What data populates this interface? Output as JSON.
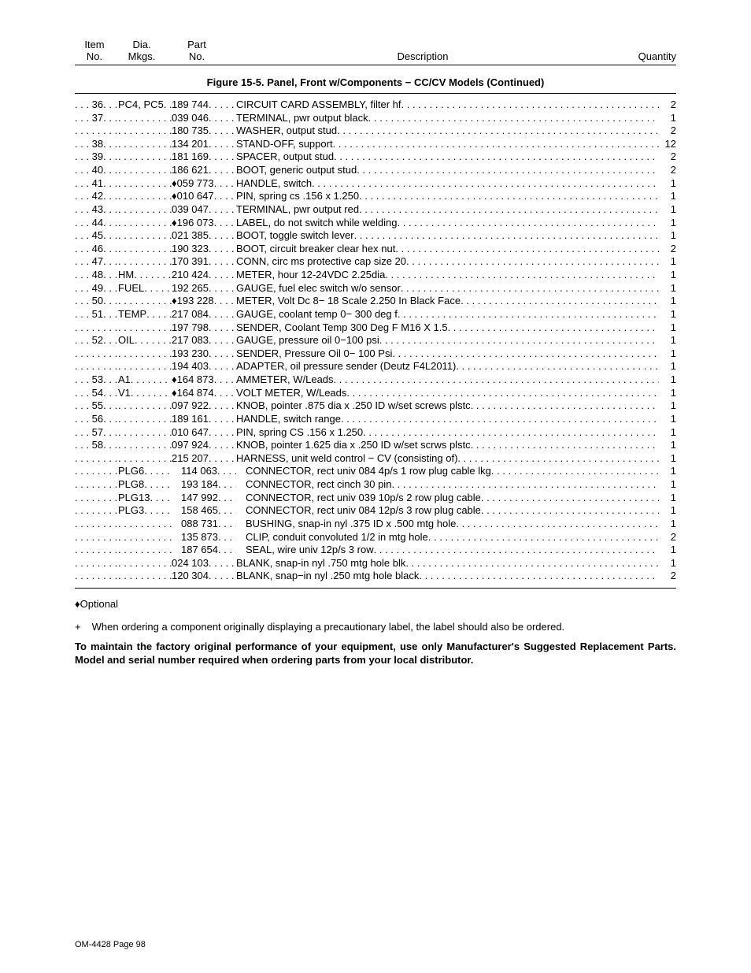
{
  "headers": {
    "item": [
      "Item",
      "No."
    ],
    "dia": [
      "Dia.",
      "Mkgs."
    ],
    "part": [
      "Part",
      "No."
    ],
    "desc": "Description",
    "qty": "Quantity"
  },
  "figure_title": "Figure 15-5. Panel, Front w/Components − CC/CV Models (Continued)",
  "rows": [
    {
      "item": "36",
      "dia": "PC4, PC5",
      "part": "189 744",
      "desc": "CIRCUIT CARD ASSEMBLY, filter hf",
      "qty": "2"
    },
    {
      "item": "37",
      "dia": "",
      "part": "039 046",
      "desc": "TERMINAL, pwr output black",
      "qty": "1"
    },
    {
      "item": "",
      "dia": "",
      "part": "180 735",
      "desc": "WASHER, output stud",
      "qty": "2"
    },
    {
      "item": "38",
      "dia": "",
      "part": "134 201",
      "desc": "STAND-OFF, support",
      "qty": "12"
    },
    {
      "item": "39",
      "dia": "",
      "part": "181 169",
      "desc": "SPACER, output stud",
      "qty": "2"
    },
    {
      "item": "40",
      "dia": "",
      "part": "186 621",
      "desc": "BOOT, generic output stud",
      "qty": "2"
    },
    {
      "item": "41",
      "dia": "",
      "part": "♦059 773",
      "desc": "HANDLE, switch",
      "qty": "1"
    },
    {
      "item": "42",
      "dia": "",
      "part": "♦010 647",
      "desc": "PIN, spring cs .156 x 1.250",
      "qty": "1"
    },
    {
      "item": "43",
      "dia": "",
      "part": "039 047",
      "desc": "TERMINAL, pwr output red",
      "qty": "1"
    },
    {
      "item": "44",
      "dia": "",
      "part": "♦196 073",
      "desc": "LABEL, do not switch while welding",
      "qty": "1"
    },
    {
      "item": "45",
      "dia": "",
      "part": "021 385",
      "desc": "BOOT, toggle switch lever",
      "qty": "1"
    },
    {
      "item": "46",
      "dia": "",
      "part": "190 323",
      "desc": "BOOT, circuit breaker clear hex nut",
      "qty": "2"
    },
    {
      "item": "47",
      "dia": "",
      "part": "170 391",
      "desc": "CONN, circ ms protective cap size 20",
      "qty": "1"
    },
    {
      "item": "48",
      "dia": "HM",
      "part": "210 424",
      "desc": "METER, hour 12-24VDC 2.25dia",
      "qty": "1"
    },
    {
      "item": "49",
      "dia": "FUEL",
      "part": "192 265",
      "desc": "GAUGE, fuel elec switch w/o sensor",
      "qty": "1"
    },
    {
      "item": "50",
      "dia": "",
      "part": "♦193 228",
      "desc": "METER, Volt Dc 8− 18 Scale 2.250 In Black Face",
      "qty": "1"
    },
    {
      "item": "51",
      "dia": "TEMP",
      "part": "217 084",
      "desc": "GAUGE, coolant temp 0− 300 deg f",
      "qty": "1"
    },
    {
      "item": "",
      "dia": "",
      "part": "197 798",
      "desc": "SENDER, Coolant Temp 300 Deg F M16 X 1.5",
      "qty": "1"
    },
    {
      "item": "52",
      "dia": "OIL",
      "part": "217 083",
      "desc": "GAUGE, pressure oil 0−100 psi",
      "qty": "1"
    },
    {
      "item": "",
      "dia": "",
      "part": "193 230",
      "desc": "SENDER, Pressure Oil 0− 100 Psi",
      "qty": "1"
    },
    {
      "item": "",
      "dia": "",
      "part": "194 403",
      "desc": "ADAPTER, oil pressure sender (Deutz F4L2011)",
      "qty": "1"
    },
    {
      "item": "53",
      "dia": "A1",
      "part": "♦164 873",
      "desc": "AMMETER, W/Leads",
      "qty": "1"
    },
    {
      "item": "54",
      "dia": "V1",
      "part": "♦164 874",
      "desc": "VOLT METER, W/Leads",
      "qty": "1"
    },
    {
      "item": "55",
      "dia": "",
      "part": "097 922",
      "desc": "KNOB, pointer .875 dia x .250 ID w/set screws plstc",
      "qty": "1"
    },
    {
      "item": "56",
      "dia": "",
      "part": "189 161",
      "desc": "HANDLE, switch range",
      "qty": "1"
    },
    {
      "item": "57",
      "dia": "",
      "part": "010 647",
      "desc": "PIN, spring CS .156 x 1.250",
      "qty": "1"
    },
    {
      "item": "58",
      "dia": "",
      "part": "097 924",
      "desc": "KNOB, pointer 1.625 dia x .250 ID w/set scrws plstc",
      "qty": "1"
    },
    {
      "item": "",
      "dia": "",
      "part": "215 207",
      "desc": "HARNESS, unit weld control − CV (consisting of)",
      "qty": "1"
    },
    {
      "item": "",
      "dia": "PLG6",
      "part": "114 063",
      "desc": "CONNECTOR, rect univ 084 4p/s 1 row plug cable lkg",
      "qty": "1",
      "indent": true
    },
    {
      "item": "",
      "dia": "PLG8",
      "part": "193 184",
      "desc": "CONNECTOR, rect cinch 30 pin",
      "qty": "1",
      "indent": true
    },
    {
      "item": "",
      "dia": "PLG13",
      "part": "147 992",
      "desc": "CONNECTOR, rect univ 039 10p/s 2 row plug cable",
      "qty": "1",
      "indent": true
    },
    {
      "item": "",
      "dia": "PLG3",
      "part": "158 465",
      "desc": "CONNECTOR, rect univ 084 12p/s 3 row plug cable",
      "qty": "1",
      "indent": true
    },
    {
      "item": "",
      "dia": "",
      "part": "088 731",
      "desc": "BUSHING, snap-in nyl .375 ID x .500 mtg hole",
      "qty": "1",
      "indent": true
    },
    {
      "item": "",
      "dia": "",
      "part": "135 873",
      "desc": "CLIP, conduit convoluted 1/2 in mtg hole",
      "qty": "2",
      "indent": true
    },
    {
      "item": "",
      "dia": "",
      "part": "187 654",
      "desc": "SEAL, wire univ 12p/s 3 row",
      "qty": "1",
      "indent": true
    },
    {
      "item": "",
      "dia": "",
      "part": "024 103",
      "desc": "BLANK, snap-in nyl .750 mtg hole blk",
      "qty": "1"
    },
    {
      "item": "",
      "dia": "",
      "part": "120 304",
      "desc": "BLANK, snap−in nyl .250 mtg hole black",
      "qty": "2"
    }
  ],
  "note_optional": "♦Optional",
  "note_plus_sym": "+",
  "note_plus": "When ordering a component originally displaying a precautionary label, the label should also be ordered.",
  "note_bold": "To maintain the factory original performance of your equipment, use only Manufacturer's Suggested Replacement Parts. Model and serial number required when ordering parts from your local distributor.",
  "footer": "OM-4428 Page 98"
}
